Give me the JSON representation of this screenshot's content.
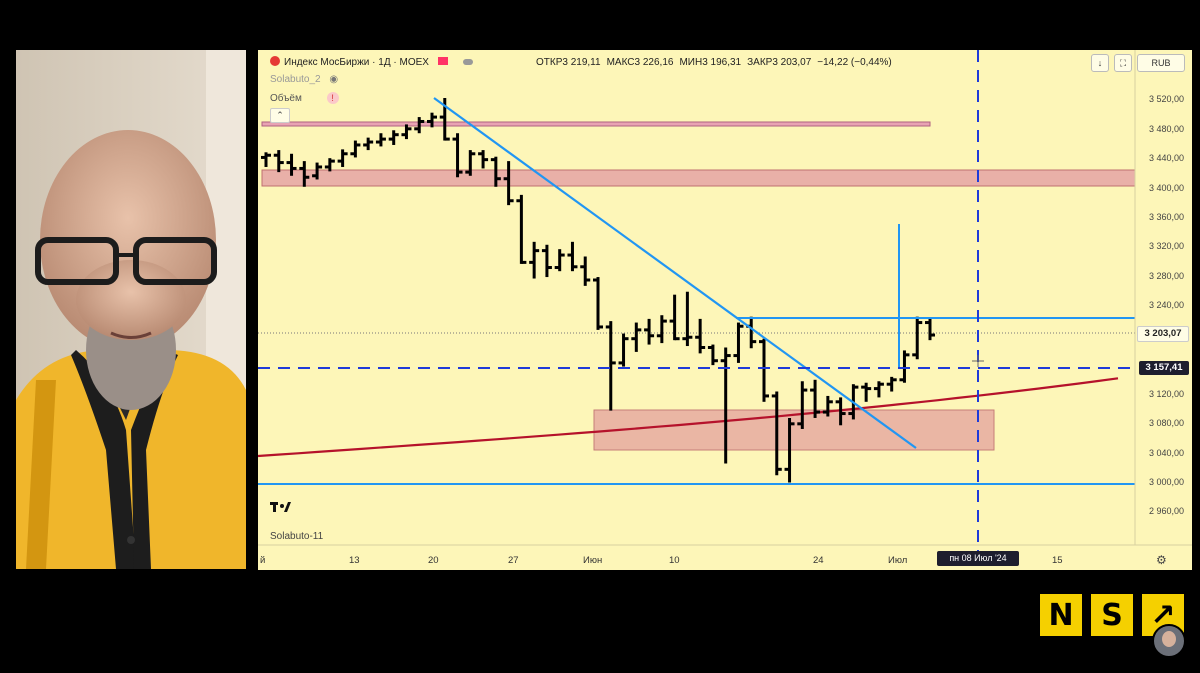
{
  "symbol": {
    "name": "Индекс МосБиржи",
    "timeframe": "1Д",
    "exchange": "MOEX",
    "separator": " · "
  },
  "ohlc": {
    "open": "ОТКР3 219,11",
    "high": "МАКС3 226,16",
    "low": "МИН3 196,31",
    "close": "ЗАКР3 203,07",
    "change": "−14,22 (−0,44%)"
  },
  "indicators": {
    "script": "Solabuto_2",
    "volume_label": "Объём",
    "watermark": "Solabuto-11"
  },
  "toolbar": {
    "currency": "RUB",
    "download_glyph": "↓",
    "expand_glyph": "⛶"
  },
  "price_axis": {
    "labels": [
      "3 520,00",
      "3 480,00",
      "3 440,00",
      "3 400,00",
      "3 360,00",
      "3 320,00",
      "3 280,00",
      "3 240,00",
      "3 120,00",
      "3 080,00",
      "3 040,00",
      "3 000,00",
      "2 960,00"
    ],
    "current_price": "3 203,07",
    "level_price": "3 157,41"
  },
  "time_axis": {
    "labels": [
      "й",
      "13",
      "20",
      "27",
      "Июн",
      "10",
      "24",
      "Июл",
      "15"
    ],
    "crosshair_date": "пн 08 Июл '24"
  },
  "chart_data": {
    "type": "ohlc",
    "ylim": [
      2940,
      3560
    ],
    "bars": [
      {
        "o": 3445,
        "h": 3452,
        "l": 3432,
        "c": 3448
      },
      {
        "o": 3448,
        "h": 3455,
        "l": 3425,
        "c": 3438
      },
      {
        "o": 3438,
        "h": 3450,
        "l": 3420,
        "c": 3430
      },
      {
        "o": 3430,
        "h": 3440,
        "l": 3405,
        "c": 3418
      },
      {
        "o": 3420,
        "h": 3438,
        "l": 3415,
        "c": 3432
      },
      {
        "o": 3432,
        "h": 3444,
        "l": 3426,
        "c": 3440
      },
      {
        "o": 3440,
        "h": 3456,
        "l": 3432,
        "c": 3450
      },
      {
        "o": 3450,
        "h": 3468,
        "l": 3445,
        "c": 3462
      },
      {
        "o": 3462,
        "h": 3472,
        "l": 3455,
        "c": 3466
      },
      {
        "o": 3466,
        "h": 3478,
        "l": 3460,
        "c": 3470
      },
      {
        "o": 3470,
        "h": 3482,
        "l": 3462,
        "c": 3476
      },
      {
        "o": 3476,
        "h": 3490,
        "l": 3470,
        "c": 3484
      },
      {
        "o": 3484,
        "h": 3500,
        "l": 3478,
        "c": 3494
      },
      {
        "o": 3494,
        "h": 3506,
        "l": 3486,
        "c": 3500
      },
      {
        "o": 3500,
        "h": 3526,
        "l": 3468,
        "c": 3470
      },
      {
        "o": 3470,
        "h": 3478,
        "l": 3418,
        "c": 3425
      },
      {
        "o": 3425,
        "h": 3455,
        "l": 3420,
        "c": 3450
      },
      {
        "o": 3450,
        "h": 3455,
        "l": 3430,
        "c": 3442
      },
      {
        "o": 3442,
        "h": 3446,
        "l": 3405,
        "c": 3416
      },
      {
        "o": 3416,
        "h": 3440,
        "l": 3380,
        "c": 3386
      },
      {
        "o": 3386,
        "h": 3394,
        "l": 3300,
        "c": 3302
      },
      {
        "o": 3302,
        "h": 3330,
        "l": 3280,
        "c": 3318
      },
      {
        "o": 3318,
        "h": 3326,
        "l": 3282,
        "c": 3295
      },
      {
        "o": 3295,
        "h": 3320,
        "l": 3290,
        "c": 3312
      },
      {
        "o": 3312,
        "h": 3330,
        "l": 3290,
        "c": 3296
      },
      {
        "o": 3296,
        "h": 3310,
        "l": 3270,
        "c": 3278
      },
      {
        "o": 3278,
        "h": 3282,
        "l": 3210,
        "c": 3214
      },
      {
        "o": 3214,
        "h": 3222,
        "l": 3100,
        "c": 3165
      },
      {
        "o": 3165,
        "h": 3205,
        "l": 3160,
        "c": 3198
      },
      {
        "o": 3198,
        "h": 3220,
        "l": 3180,
        "c": 3210
      },
      {
        "o": 3210,
        "h": 3225,
        "l": 3190,
        "c": 3202
      },
      {
        "o": 3202,
        "h": 3230,
        "l": 3192,
        "c": 3222
      },
      {
        "o": 3222,
        "h": 3258,
        "l": 3196,
        "c": 3198
      },
      {
        "o": 3198,
        "h": 3262,
        "l": 3188,
        "c": 3200
      },
      {
        "o": 3200,
        "h": 3225,
        "l": 3178,
        "c": 3186
      },
      {
        "o": 3186,
        "h": 3190,
        "l": 3162,
        "c": 3168
      },
      {
        "o": 3168,
        "h": 3186,
        "l": 3028,
        "c": 3175
      },
      {
        "o": 3175,
        "h": 3220,
        "l": 3165,
        "c": 3215
      },
      {
        "o": 3215,
        "h": 3228,
        "l": 3185,
        "c": 3194
      },
      {
        "o": 3194,
        "h": 3198,
        "l": 3112,
        "c": 3120
      },
      {
        "o": 3120,
        "h": 3126,
        "l": 3012,
        "c": 3020
      },
      {
        "o": 3020,
        "h": 3090,
        "l": 3002,
        "c": 3082
      },
      {
        "o": 3082,
        "h": 3140,
        "l": 3075,
        "c": 3128
      },
      {
        "o": 3128,
        "h": 3142,
        "l": 3090,
        "c": 3098
      },
      {
        "o": 3098,
        "h": 3120,
        "l": 3092,
        "c": 3112
      },
      {
        "o": 3112,
        "h": 3118,
        "l": 3080,
        "c": 3096
      },
      {
        "o": 3096,
        "h": 3136,
        "l": 3088,
        "c": 3132
      },
      {
        "o": 3132,
        "h": 3138,
        "l": 3112,
        "c": 3130
      },
      {
        "o": 3130,
        "h": 3140,
        "l": 3118,
        "c": 3136
      },
      {
        "o": 3136,
        "h": 3146,
        "l": 3126,
        "c": 3142
      },
      {
        "o": 3142,
        "h": 3182,
        "l": 3138,
        "c": 3176
      },
      {
        "o": 3176,
        "h": 3228,
        "l": 3170,
        "c": 3220
      },
      {
        "o": 3220,
        "h": 3226,
        "l": 3196,
        "c": 3203
      }
    ],
    "colors": {
      "bars": "#000000",
      "trend_lines": "#2196f3",
      "moving_average": "#b5122b",
      "zones": "#e89a9a",
      "crosshair": "#1e3ad9"
    }
  }
}
